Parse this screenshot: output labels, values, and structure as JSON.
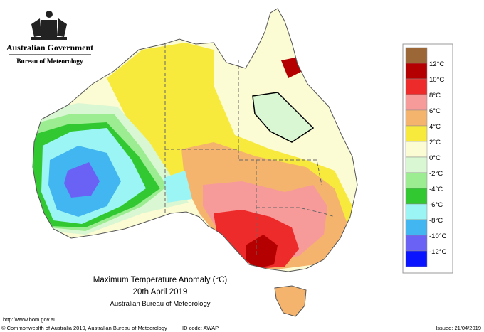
{
  "header": {
    "agency": "Australian Government",
    "bureau": "Bureau of Meteorology"
  },
  "map": {
    "title": "Maximum Temperature Anomaly (°C)",
    "date": "20th April 2019",
    "source": "Australian Bureau of Meteorology"
  },
  "legend": {
    "colors": [
      "#9c6737",
      "#b40000",
      "#ee2b2b",
      "#f79a9a",
      "#f5b46e",
      "#f7ea3c",
      "#fbfbd4",
      "#d9f7d2",
      "#9ced92",
      "#32c832",
      "#9cf5f5",
      "#42b6f0",
      "#6a62f5",
      "#0a14ff"
    ],
    "labels": [
      "12°C",
      "10°C",
      "8°C",
      "6°C",
      "4°C",
      "2°C",
      "0°C",
      "-2°C",
      "-4°C",
      "-6°C",
      "-8°C",
      "-10°C",
      "-12°C"
    ]
  },
  "footer": {
    "url": "http://www.bom.gov.au",
    "copyright": "© Commonwealth of Australia 2019, Australian Bureau of Meteorology",
    "id_code": "ID code: AWAP",
    "issued": "Issued: 21/04/2019"
  }
}
